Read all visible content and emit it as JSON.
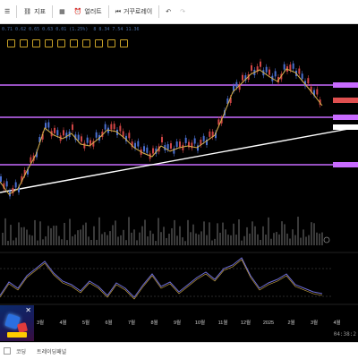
{
  "toolbar": {
    "menu_label": "",
    "indicator_label": "지표",
    "alert_label": "얼러트",
    "replay_label": "거꾸로레이"
  },
  "legend": {
    "items": [
      "0.71 0.62 0.65 0.63 0.01 (1.25%)",
      "8 8.34 7.54 11.36"
    ]
  },
  "chart_data": {
    "type": "line",
    "x_ticks": [
      "3월",
      "4월",
      "5월",
      "6월",
      "7월",
      "8월",
      "9월",
      "10월",
      "11월",
      "12월",
      "2025",
      "2월",
      "3월",
      "4월"
    ],
    "price_series": [
      [
        0,
        200
      ],
      [
        10,
        214
      ],
      [
        20,
        208
      ],
      [
        30,
        188
      ],
      [
        40,
        170
      ],
      [
        50,
        140
      ],
      [
        60,
        148
      ],
      [
        70,
        152
      ],
      [
        80,
        146
      ],
      [
        90,
        158
      ],
      [
        100,
        160
      ],
      [
        110,
        152
      ],
      [
        120,
        142
      ],
      [
        130,
        144
      ],
      [
        140,
        152
      ],
      [
        150,
        162
      ],
      [
        160,
        168
      ],
      [
        170,
        172
      ],
      [
        180,
        160
      ],
      [
        190,
        166
      ],
      [
        200,
        162
      ],
      [
        210,
        160
      ],
      [
        220,
        162
      ],
      [
        230,
        155
      ],
      [
        240,
        148
      ],
      [
        250,
        125
      ],
      [
        260,
        100
      ],
      [
        270,
        90
      ],
      [
        280,
        80
      ],
      [
        290,
        75
      ],
      [
        300,
        82
      ],
      [
        310,
        88
      ],
      [
        320,
        74
      ],
      [
        330,
        78
      ],
      [
        340,
        90
      ],
      [
        350,
        102
      ],
      [
        360,
        115
      ]
    ],
    "trend_line": [
      [
        0,
        215
      ],
      [
        400,
        142
      ]
    ],
    "horizontal_levels": [
      95,
      131,
      184
    ],
    "rsi_series": [
      [
        0,
        330
      ],
      [
        10,
        315
      ],
      [
        20,
        322
      ],
      [
        30,
        308
      ],
      [
        40,
        300
      ],
      [
        50,
        292
      ],
      [
        60,
        305
      ],
      [
        70,
        314
      ],
      [
        80,
        318
      ],
      [
        90,
        325
      ],
      [
        100,
        314
      ],
      [
        110,
        320
      ],
      [
        120,
        330
      ],
      [
        130,
        316
      ],
      [
        140,
        322
      ],
      [
        150,
        332
      ],
      [
        160,
        318
      ],
      [
        170,
        306
      ],
      [
        180,
        320
      ],
      [
        190,
        315
      ],
      [
        200,
        326
      ],
      [
        210,
        318
      ],
      [
        220,
        310
      ],
      [
        230,
        304
      ],
      [
        240,
        312
      ],
      [
        250,
        300
      ],
      [
        260,
        296
      ],
      [
        270,
        288
      ],
      [
        280,
        308
      ],
      [
        290,
        322
      ],
      [
        300,
        316
      ],
      [
        310,
        312
      ],
      [
        320,
        306
      ],
      [
        330,
        318
      ],
      [
        340,
        322
      ],
      [
        350,
        326
      ],
      [
        360,
        328
      ]
    ]
  },
  "ad": {
    "close_label": "✕"
  },
  "status": {
    "time": "04:38:2"
  },
  "bottom": {
    "tabs": [
      "코딩",
      "트레이딩패널"
    ]
  },
  "colors": {
    "background": "#000000",
    "level_line": "#c86bff",
    "trend_line": "#ffffff",
    "ma_line": "#d9b24a",
    "rsi_line": "#6d6dd6",
    "volume": "#3a3a3a"
  }
}
